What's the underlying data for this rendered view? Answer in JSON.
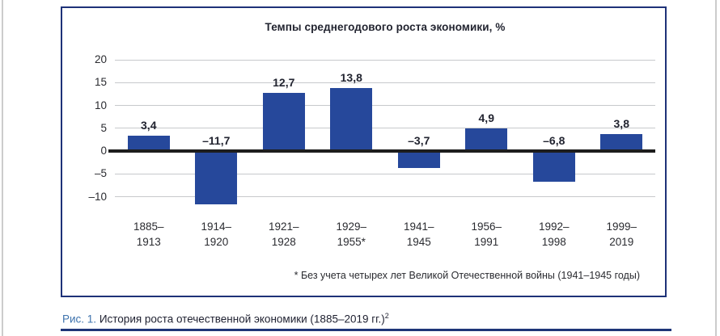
{
  "page": {
    "caption": {
      "figure_label": "Рис. 1.",
      "text": " История роста отечественной экономики (1885–2019 гг.)",
      "footnote_marker": "2"
    }
  },
  "chart_data": {
    "type": "bar",
    "title": "Темпы среднегодового роста экономики, %",
    "footnote": "* Без учета четырех лет Великой Отечественной войны (1941–1945 годы)",
    "categories": [
      [
        "1885–",
        "1913"
      ],
      [
        "1914–",
        "1920"
      ],
      [
        "1921–",
        "1928"
      ],
      [
        "1929–",
        "1955*"
      ],
      [
        "1941–",
        "1945"
      ],
      [
        "1956–",
        "1991"
      ],
      [
        "1992–",
        "1998"
      ],
      [
        "1999–",
        "2019"
      ]
    ],
    "values": [
      3.4,
      -11.7,
      12.7,
      13.8,
      -3.7,
      4.9,
      -6.8,
      3.8
    ],
    "value_labels": [
      "3,4",
      "–11,7",
      "12,7",
      "13,8",
      "–3,7",
      "4,9",
      "–6,8",
      "3,8"
    ],
    "yticks": [
      20,
      15,
      10,
      5,
      0,
      -5,
      -10
    ],
    "ytick_labels": [
      "20",
      "15",
      "10",
      "5",
      "0",
      "–5",
      "–10"
    ],
    "ylim": [
      -12.5,
      21
    ],
    "grid": true,
    "legend": false,
    "xlabel": "",
    "ylabel": "",
    "bar_color": "#26489b",
    "axis_color": "#1d1d1d",
    "grid_color": "#c7c9cc"
  }
}
